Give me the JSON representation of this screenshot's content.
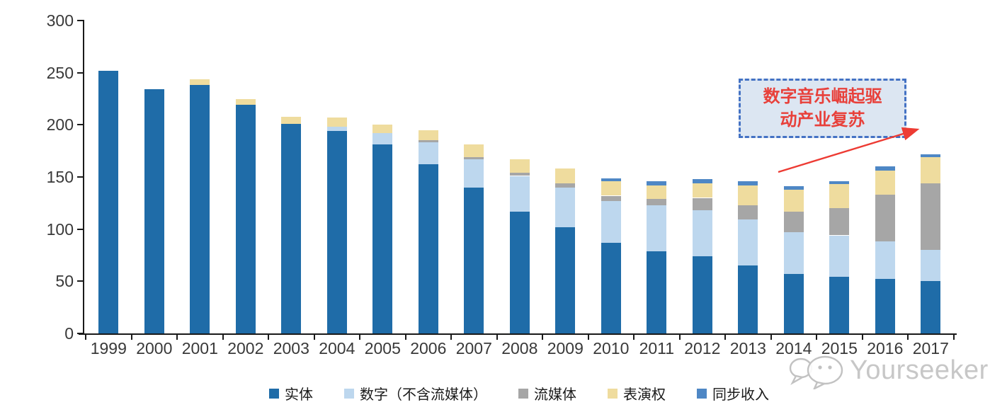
{
  "chart_data": {
    "type": "bar",
    "stacked": true,
    "grid": false,
    "legend_position": "bottom",
    "categories": [
      "1999",
      "2000",
      "2001",
      "2002",
      "2003",
      "2004",
      "2005",
      "2006",
      "2007",
      "2008",
      "2009",
      "2010",
      "2011",
      "2012",
      "2013",
      "2014",
      "2015",
      "2016",
      "2017"
    ],
    "series": [
      {
        "name": "实体",
        "color": "#1f6ca8",
        "values": [
          252,
          234,
          238,
          219,
          201,
          194,
          181,
          162,
          140,
          117,
          102,
          87,
          79,
          74,
          65,
          57,
          54,
          52,
          50
        ]
      },
      {
        "name": "数字（不含流媒体）",
        "color": "#bdd7ee",
        "values": [
          0,
          0,
          0,
          0,
          0,
          4,
          11,
          21,
          27,
          34,
          38,
          40,
          44,
          44,
          44,
          40,
          40,
          36,
          30
        ]
      },
      {
        "name": "流媒体",
        "color": "#a6a6a6",
        "values": [
          0,
          0,
          0,
          0,
          0,
          0,
          0,
          2,
          2,
          3,
          4,
          5,
          6,
          12,
          14,
          20,
          26,
          45,
          64
        ]
      },
      {
        "name": "表演权",
        "color": "#efdc9e",
        "values": [
          0,
          0,
          6,
          6,
          7,
          9,
          8,
          10,
          12,
          13,
          14,
          14,
          13,
          14,
          19,
          21,
          23,
          23,
          25
        ]
      },
      {
        "name": "同步收入",
        "color": "#4e87c5",
        "values": [
          0,
          0,
          0,
          0,
          0,
          0,
          0,
          0,
          0,
          0,
          0,
          3,
          4,
          4,
          4,
          3,
          3,
          4,
          3
        ]
      }
    ],
    "ylim": [
      0,
      300
    ],
    "yticks": [
      0,
      50,
      100,
      150,
      200,
      250,
      300
    ],
    "xlabel": "",
    "ylabel": ""
  },
  "annotation": {
    "line1": "数字音乐崛起驱",
    "line2": "动产业复苏",
    "text_color": "#e8403a",
    "border_color": "#4472c4",
    "fill_color": "#dce6f2",
    "arrow_color": "#ed3b33"
  },
  "watermark": {
    "text": "Yourseeker",
    "icon": "chat-bubbles-icon",
    "color": "#c7c7c7"
  }
}
